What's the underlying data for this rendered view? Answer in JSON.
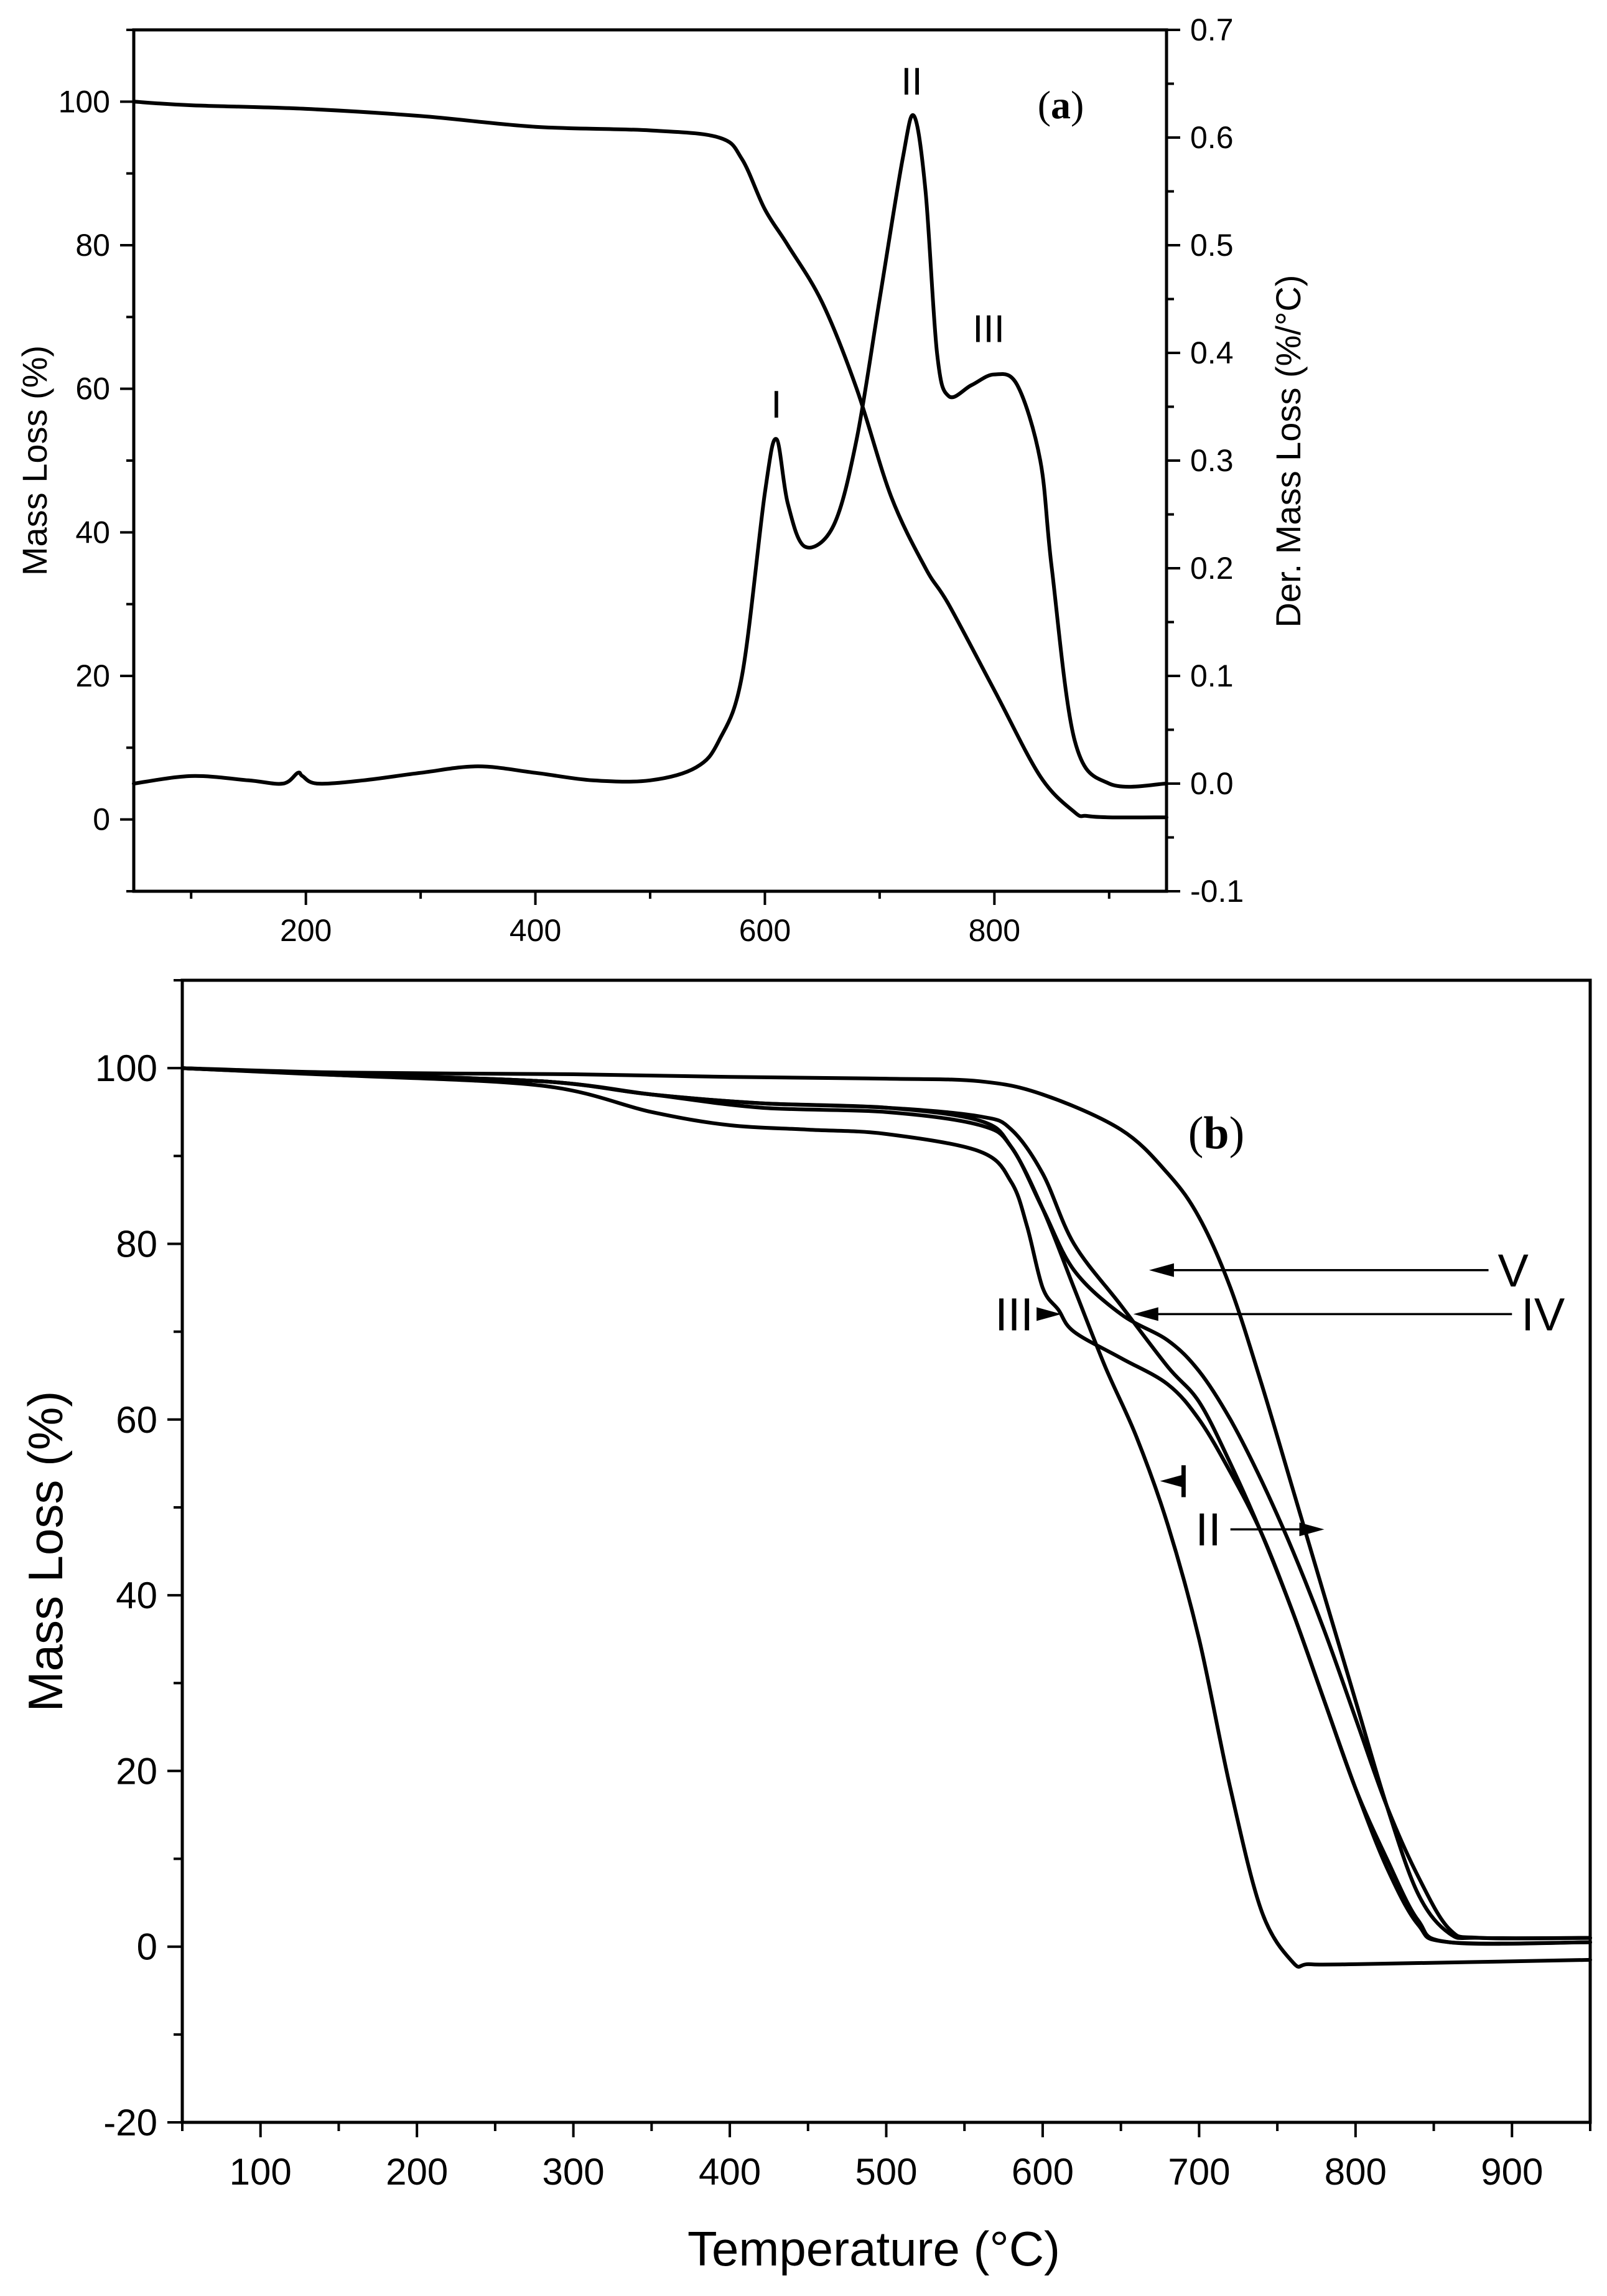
{
  "chart_data": [
    {
      "panel": "(a)",
      "panel_label": {
        "open": "(",
        "letter": "a",
        "close": ")"
      },
      "type": "line",
      "xlabel": "",
      "ylabel": "Mass Loss (%)",
      "y2label": "Der. Mass Loss (%/°C)",
      "xlim": [
        50,
        950
      ],
      "ylim": [
        -10,
        110
      ],
      "y2lim": [
        -0.1,
        0.7
      ],
      "x_ticks": [
        200,
        400,
        600,
        800
      ],
      "y_ticks": [
        0,
        20,
        40,
        60,
        80,
        100
      ],
      "y2_ticks": [
        -0.1,
        0.0,
        0.1,
        0.2,
        0.3,
        0.4,
        0.5,
        0.6,
        0.7
      ],
      "y2_tick_labels": [
        "-0.1",
        "0.0",
        "0.1",
        "0.2",
        "0.3",
        "0.4",
        "0.5",
        "0.6",
        "0.7"
      ],
      "series": [
        {
          "name": "Mass Loss",
          "axis": "left",
          "x": [
            50,
            100,
            200,
            300,
            400,
            500,
            560,
            580,
            600,
            620,
            650,
            680,
            710,
            740,
            760,
            800,
            840,
            870,
            880,
            900,
            950
          ],
          "y": [
            100,
            99.5,
            99,
            98,
            96.5,
            96,
            95,
            92,
            85,
            80,
            72,
            60,
            45,
            35,
            30,
            18,
            6,
            1,
            0.5,
            0.3,
            0.3
          ]
        },
        {
          "name": "Der. Mass Loss",
          "axis": "right",
          "x": [
            50,
            100,
            150,
            180,
            193,
            197,
            210,
            250,
            300,
            350,
            400,
            450,
            500,
            540,
            560,
            580,
            600,
            610,
            620,
            635,
            660,
            680,
            700,
            720,
            730,
            740,
            750,
            760,
            780,
            800,
            820,
            840,
            850,
            870,
            900,
            950
          ],
          "y": [
            0.0,
            0.007,
            0.003,
            0.0,
            0.01,
            0.007,
            0.0,
            0.003,
            0.01,
            0.016,
            0.01,
            0.003,
            0.003,
            0.015,
            0.04,
            0.1,
            0.27,
            0.32,
            0.26,
            0.22,
            0.24,
            0.32,
            0.45,
            0.58,
            0.62,
            0.55,
            0.4,
            0.36,
            0.37,
            0.38,
            0.37,
            0.3,
            0.2,
            0.04,
            0.0,
            0.0
          ]
        }
      ],
      "annotations": [
        {
          "text": "I",
          "x": 610,
          "y2": 0.34
        },
        {
          "text": "II",
          "x": 728,
          "y2": 0.64
        },
        {
          "text": "III",
          "x": 795,
          "y2": 0.41
        }
      ]
    },
    {
      "panel": "(b)",
      "panel_label": {
        "open": "(",
        "letter": "b",
        "close": ")"
      },
      "type": "line",
      "xlabel": "Temperature (°C)",
      "ylabel": "Mass Loss (%)",
      "xlim": [
        50,
        950
      ],
      "ylim": [
        -20,
        110
      ],
      "x_ticks": [
        100,
        200,
        300,
        400,
        500,
        600,
        700,
        800,
        900
      ],
      "y_ticks": [
        -20,
        0,
        20,
        40,
        60,
        80,
        100
      ],
      "series": [
        {
          "name": "I",
          "x": [
            50,
            150,
            280,
            350,
            420,
            500,
            560,
            580,
            600,
            620,
            640,
            660,
            680,
            700,
            720,
            740,
            760,
            770,
            800,
            950
          ],
          "y": [
            100,
            99.2,
            98.5,
            97,
            96,
            95.5,
            94,
            91,
            84,
            75,
            66,
            58,
            48,
            35,
            18,
            4,
            -1.8,
            -2,
            -2,
            -1.5
          ]
        },
        {
          "name": "II",
          "x": [
            50,
            150,
            280,
            350,
            420,
            500,
            560,
            580,
            600,
            620,
            650,
            680,
            700,
            720,
            740,
            760,
            780,
            800,
            820,
            840,
            860,
            950
          ],
          "y": [
            100,
            99.3,
            98.5,
            97,
            96,
            95.5,
            94.5,
            93,
            88,
            80,
            73,
            66,
            62,
            55,
            47,
            38,
            28,
            18,
            10,
            3,
            0.5,
            0.5
          ]
        },
        {
          "name": "III",
          "x": [
            50,
            150,
            280,
            350,
            400,
            450,
            500,
            560,
            580,
            590,
            600,
            610,
            620,
            650,
            680,
            700,
            720,
            740,
            760,
            780,
            800,
            820,
            840,
            860,
            950
          ],
          "y": [
            100,
            99.2,
            98,
            95,
            93.5,
            93,
            92.5,
            90.5,
            87,
            82,
            75,
            72.5,
            70,
            67,
            64,
            60,
            54,
            47,
            38,
            28,
            18,
            9,
            2.5,
            0.5,
            0.5
          ]
        },
        {
          "name": "IV",
          "x": [
            50,
            150,
            280,
            350,
            420,
            500,
            560,
            580,
            600,
            620,
            650,
            680,
            700,
            720,
            740,
            760,
            780,
            800,
            820,
            840,
            860,
            880,
            950
          ],
          "y": [
            100,
            99.3,
            98.5,
            97,
            95.5,
            95,
            93.5,
            91,
            84,
            77,
            72,
            69,
            65.5,
            60,
            53,
            45,
            36,
            26,
            16,
            8,
            2,
            1,
            1
          ]
        },
        {
          "name": "V",
          "x": [
            50,
            150,
            300,
            400,
            500,
            560,
            600,
            650,
            680,
            700,
            720,
            740,
            760,
            780,
            800,
            820,
            840,
            860,
            880,
            950
          ],
          "y": [
            100,
            99.5,
            99.3,
            99,
            98.8,
            98.5,
            97,
            93,
            88,
            83,
            75,
            64,
            52,
            40,
            28,
            16,
            6,
            1.5,
            1,
            1
          ]
        }
      ],
      "annotations": [
        {
          "text": "V",
          "label_x": 885,
          "label_y": 77,
          "arrow_to_x": 668,
          "arrow_to_y": 77
        },
        {
          "text": "IV",
          "label_x": 900,
          "label_y": 72,
          "arrow_to_x": 658,
          "arrow_to_y": 72
        },
        {
          "text": "III",
          "label_x": 600,
          "label_y": 72,
          "arrow_to_x": 612,
          "arrow_to_y": 72
        },
        {
          "text": "I",
          "label_x": 680,
          "label_y": 53,
          "arrow_to_x": 675,
          "arrow_to_y": 53
        },
        {
          "text": "II",
          "label_x": 720,
          "label_y": 47.5,
          "arrow_to_x": 780,
          "arrow_to_y": 47.5
        }
      ]
    }
  ]
}
